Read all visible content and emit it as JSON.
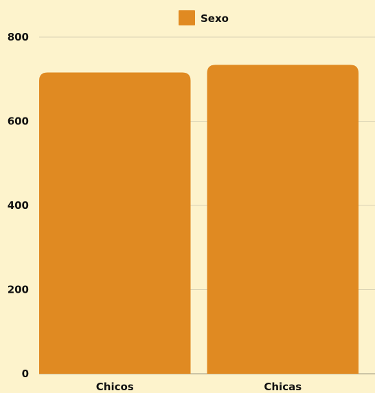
{
  "chart_data": {
    "type": "bar",
    "categories": [
      "Chicos",
      "Chicas"
    ],
    "series": [
      {
        "name": "Sexo",
        "values": [
          716,
          734
        ],
        "color": "#e08a22"
      }
    ],
    "ylim": [
      0,
      800
    ],
    "yticks": [
      "0",
      "200",
      "400",
      "600",
      "800"
    ],
    "grid": true,
    "legend_position": "top-center",
    "background": "#fdf3cc"
  }
}
